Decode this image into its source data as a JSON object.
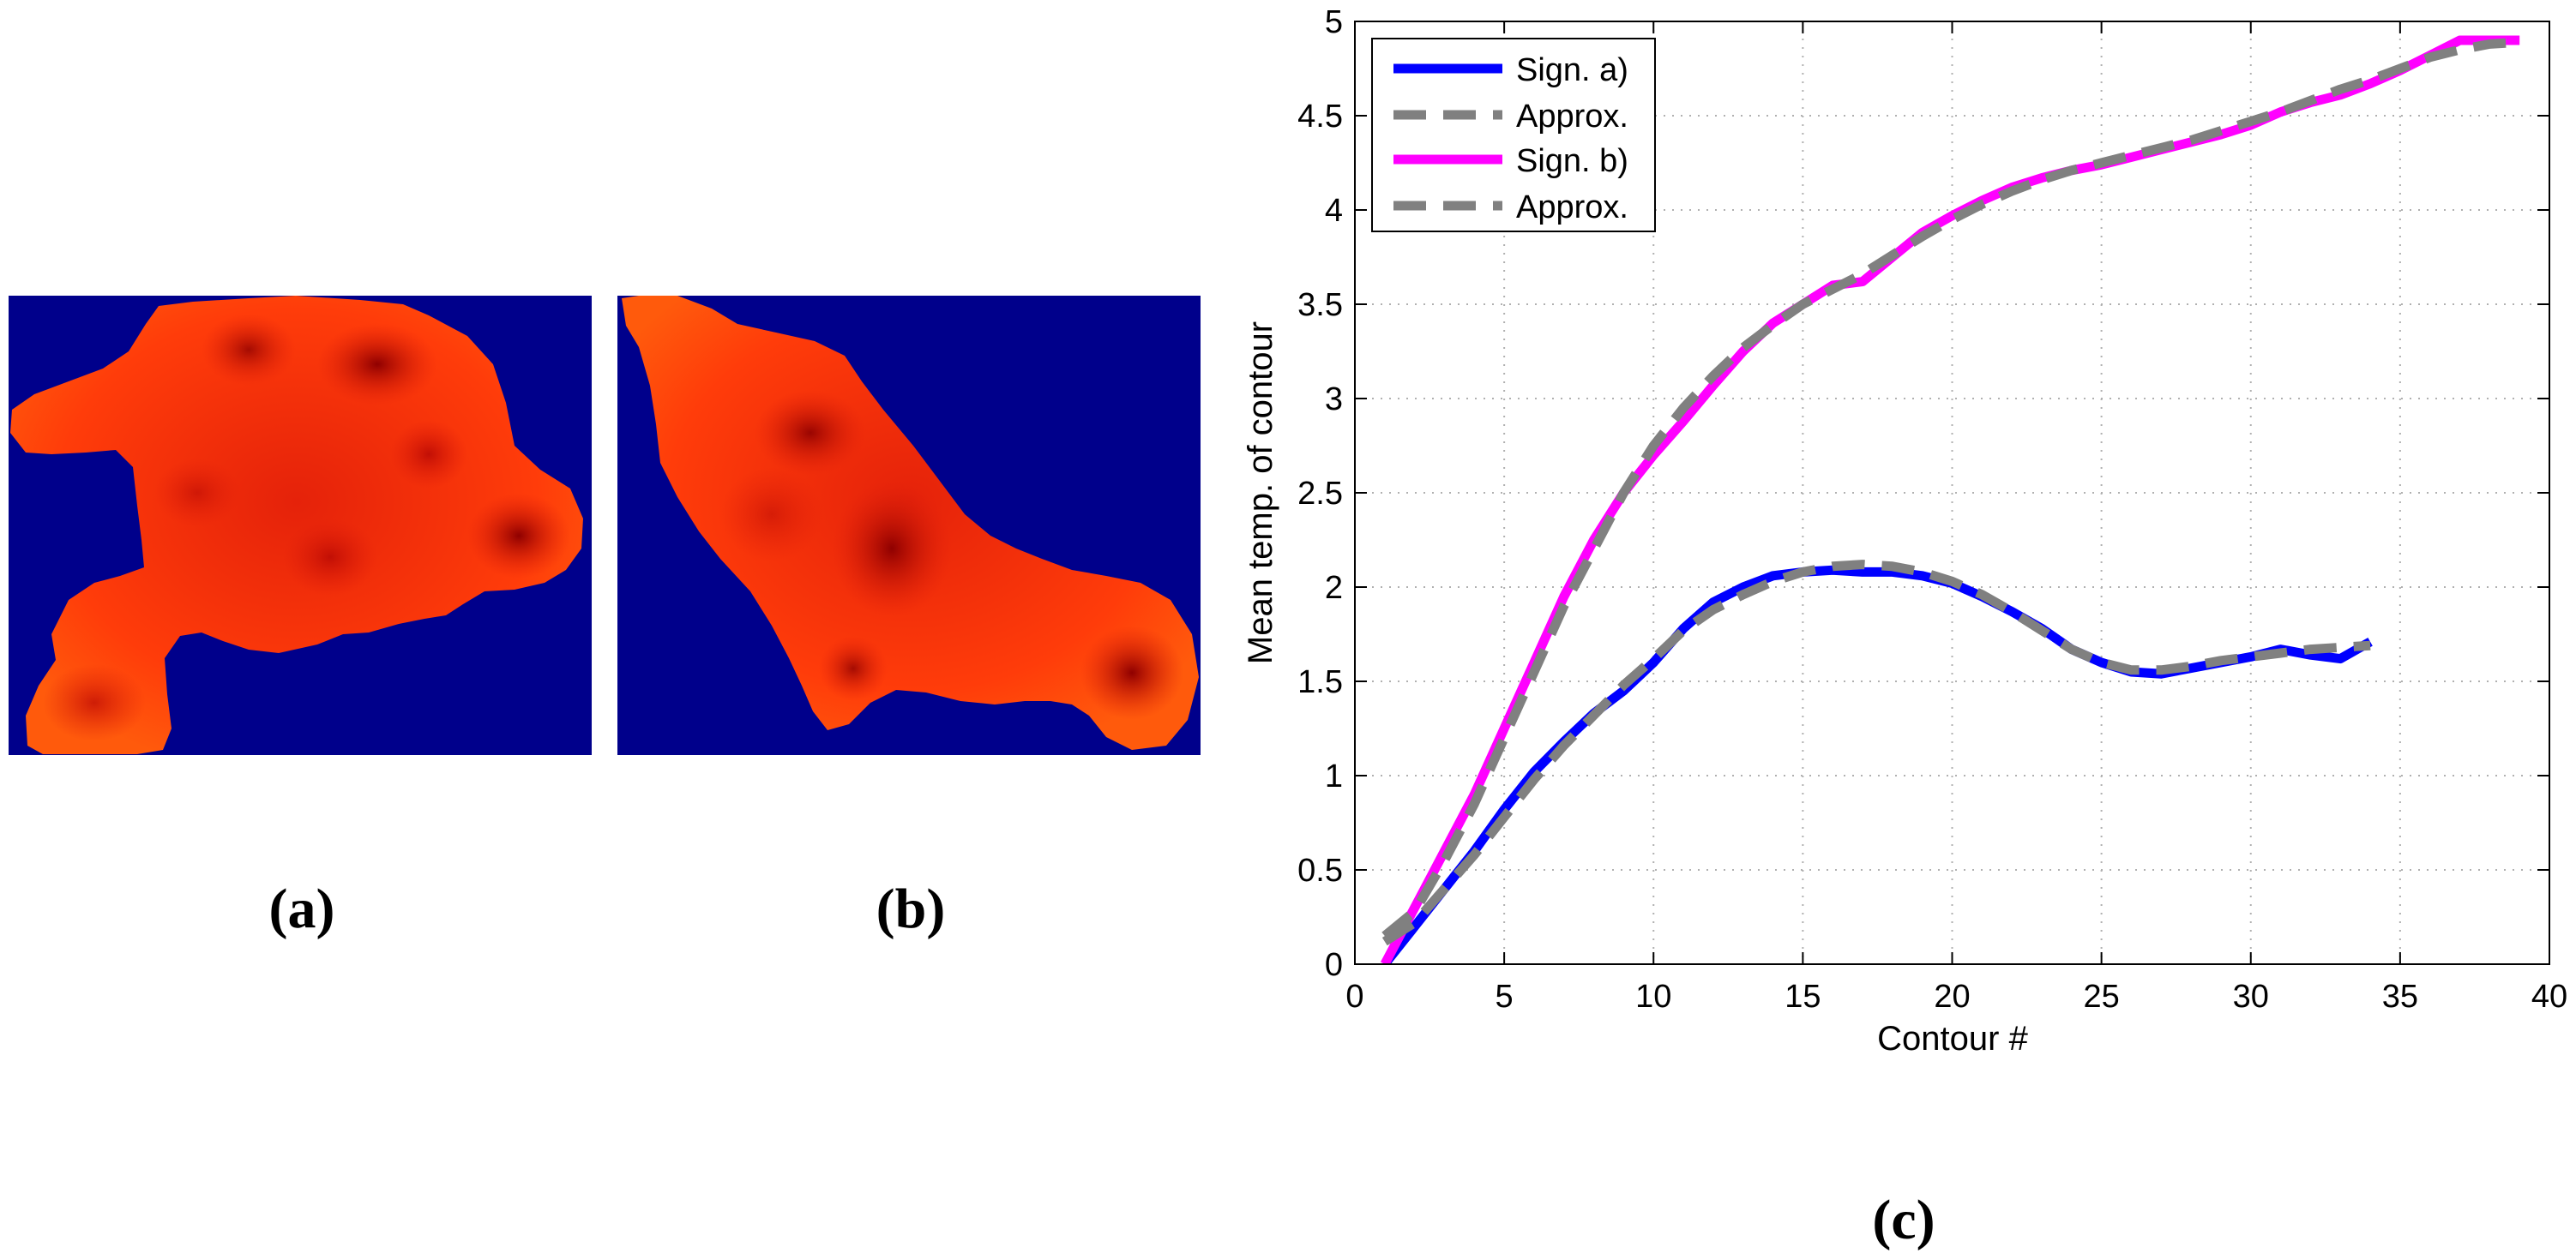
{
  "panels": {
    "a": {
      "label": "(a)"
    },
    "b": {
      "label": "(b)"
    },
    "c": {
      "label": "(c)"
    }
  },
  "colors": {
    "background": "#00008B",
    "heat_base": "#ff4a0a",
    "heat_mid": "#e8200a",
    "heat_dark": "#9e0000",
    "sign_a": "#0000ff",
    "sign_b": "#ff00ff",
    "approx": "#808080"
  },
  "chart_data": {
    "type": "line",
    "title": "",
    "xlabel": "Contour #",
    "ylabel": "Mean temp. of contour",
    "xlim": [
      0,
      40
    ],
    "ylim": [
      0,
      5
    ],
    "xticks": [
      "0",
      "5",
      "10",
      "15",
      "20",
      "25",
      "30",
      "35",
      "40"
    ],
    "yticks": [
      "0",
      "0.5",
      "1",
      "1.5",
      "2",
      "2.5",
      "3",
      "3.5",
      "4",
      "4.5",
      "5"
    ],
    "grid": true,
    "legend_position": "top-left",
    "series": [
      {
        "name": "Sign. a)",
        "style": "solid",
        "color": "#0000ff",
        "x": [
          1,
          2,
          3,
          4,
          5,
          6,
          7,
          8,
          9,
          10,
          11,
          12,
          13,
          14,
          15,
          16,
          17,
          18,
          19,
          20,
          21,
          22,
          23,
          24,
          25,
          26,
          27,
          28,
          29,
          30,
          31,
          32,
          33,
          34
        ],
        "y": [
          0,
          0.2,
          0.4,
          0.6,
          0.82,
          1.02,
          1.18,
          1.33,
          1.45,
          1.6,
          1.78,
          1.92,
          2.0,
          2.06,
          2.08,
          2.09,
          2.08,
          2.08,
          2.06,
          2.02,
          1.95,
          1.87,
          1.78,
          1.67,
          1.6,
          1.55,
          1.54,
          1.57,
          1.6,
          1.63,
          1.67,
          1.64,
          1.62,
          1.71
        ]
      },
      {
        "name": "Approx.",
        "style": "dashed",
        "color": "#808080",
        "x": [
          1,
          2,
          3,
          4,
          5,
          6,
          7,
          8,
          9,
          10,
          11,
          12,
          13,
          14,
          15,
          16,
          17,
          18,
          19,
          20,
          21,
          22,
          23,
          24,
          25,
          26,
          27,
          28,
          29,
          30,
          31,
          32,
          33,
          34
        ],
        "y": [
          0.12,
          0.22,
          0.4,
          0.58,
          0.78,
          0.98,
          1.16,
          1.32,
          1.48,
          1.62,
          1.77,
          1.88,
          1.96,
          2.03,
          2.08,
          2.11,
          2.12,
          2.11,
          2.08,
          2.03,
          1.96,
          1.87,
          1.77,
          1.67,
          1.6,
          1.56,
          1.56,
          1.58,
          1.61,
          1.63,
          1.65,
          1.67,
          1.68,
          1.69
        ]
      },
      {
        "name": "Sign. b)",
        "style": "solid",
        "color": "#ff00ff",
        "x": [
          1,
          2,
          3,
          4,
          5,
          6,
          7,
          8,
          9,
          10,
          11,
          12,
          13,
          14,
          15,
          16,
          17,
          18,
          19,
          20,
          21,
          22,
          23,
          24,
          25,
          26,
          27,
          28,
          29,
          30,
          31,
          32,
          33,
          34,
          35,
          36,
          37,
          38,
          39
        ],
        "y": [
          0,
          0.3,
          0.6,
          0.9,
          1.25,
          1.6,
          1.95,
          2.25,
          2.5,
          2.7,
          2.88,
          3.07,
          3.25,
          3.4,
          3.5,
          3.6,
          3.62,
          3.75,
          3.88,
          3.97,
          4.05,
          4.12,
          4.17,
          4.21,
          4.24,
          4.28,
          4.32,
          4.36,
          4.4,
          4.45,
          4.52,
          4.57,
          4.61,
          4.67,
          4.74,
          4.82,
          4.9,
          4.9,
          4.9
        ]
      },
      {
        "name": "Approx.",
        "style": "dashed",
        "color": "#808080",
        "x": [
          1,
          2,
          3,
          4,
          5,
          6,
          7,
          8,
          9,
          10,
          11,
          12,
          13,
          14,
          15,
          16,
          17,
          18,
          19,
          20,
          21,
          22,
          23,
          24,
          25,
          26,
          27,
          28,
          29,
          30,
          31,
          32,
          33,
          34,
          35,
          36,
          37,
          38,
          39
        ],
        "y": [
          0.15,
          0.28,
          0.55,
          0.85,
          1.2,
          1.55,
          1.9,
          2.2,
          2.5,
          2.75,
          2.95,
          3.12,
          3.27,
          3.39,
          3.5,
          3.58,
          3.66,
          3.76,
          3.86,
          3.95,
          4.03,
          4.1,
          4.16,
          4.21,
          4.25,
          4.29,
          4.33,
          4.37,
          4.42,
          4.47,
          4.52,
          4.58,
          4.64,
          4.69,
          4.75,
          4.81,
          4.85,
          4.88,
          4.89
        ]
      }
    ]
  }
}
